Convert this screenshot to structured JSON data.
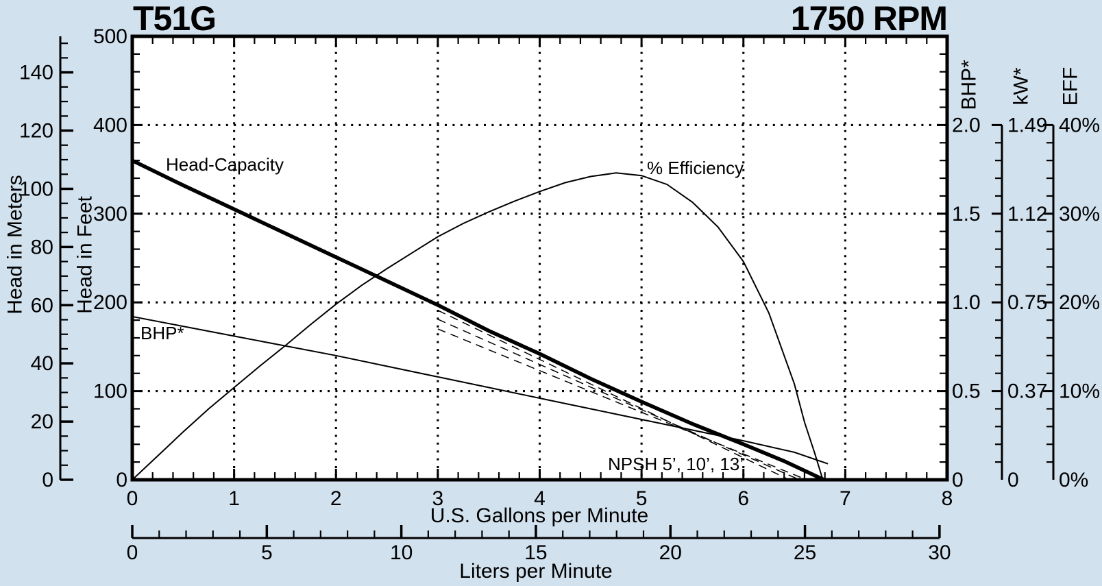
{
  "page": {
    "background": "#d2e1ee",
    "plot_background": "#ffffff",
    "ink": "#000000"
  },
  "header": {
    "model": "T51G",
    "speed": "1750 RPM"
  },
  "axes": {
    "gpm": {
      "title": "U.S. Gallons per Minute",
      "ticks": [
        "0",
        "1",
        "2",
        "3",
        "4",
        "5",
        "6",
        "7",
        "8"
      ],
      "range": [
        0,
        8
      ],
      "minor_step": 0.2
    },
    "lpm": {
      "title": "Liters per Minute",
      "ticks": [
        "0",
        "5",
        "10",
        "15",
        "20",
        "25",
        "30"
      ],
      "range": [
        0,
        30
      ],
      "minor_step": 1
    },
    "feet": {
      "title": "Head in Feet",
      "ticks": [
        "0",
        "100",
        "200",
        "300",
        "400",
        "500"
      ],
      "range": [
        0,
        500
      ],
      "minor_step": 20
    },
    "meters": {
      "title": "Head in Meters",
      "ticks": [
        "0",
        "20",
        "40",
        "60",
        "80",
        "100",
        "120",
        "140"
      ],
      "range": [
        0,
        152
      ],
      "minor_step": 5
    },
    "bhp": {
      "title": "BHP*",
      "labels": [
        "2.0",
        "1.5",
        "1.0",
        "0.5",
        "0"
      ],
      "at_feet": [
        400,
        300,
        200,
        100,
        0
      ]
    },
    "kw": {
      "title": "kW*",
      "labels": [
        "1.49",
        "1.12",
        "0.75",
        "0.37",
        "0"
      ],
      "at_feet": [
        400,
        300,
        200,
        100,
        0
      ]
    },
    "eff": {
      "title": "EFF",
      "labels": [
        "40%",
        "30%",
        "20%",
        "10%",
        "0%"
      ],
      "at_feet": [
        400,
        300,
        200,
        100,
        0
      ]
    }
  },
  "annotations": {
    "head_capacity": "Head-Capacity",
    "efficiency": "% Efficiency",
    "bhp": "BHP*",
    "npsh": "NPSH 5’, 10’, 13’"
  },
  "chart_data": {
    "type": "line",
    "title": "T51G",
    "subtitle": "1750 RPM",
    "xlabel": "U.S. Gallons per Minute",
    "xlabel2": "Liters per Minute",
    "x_range_gpm": [
      0,
      8
    ],
    "x_range_lpm": [
      0,
      30
    ],
    "y_feet_range": [
      0,
      500
    ],
    "y_meters_range": [
      0,
      152
    ],
    "y_bhp_labels": [
      2.0,
      1.5,
      1.0,
      0.5,
      0
    ],
    "y_kw_labels": [
      1.49,
      1.12,
      0.75,
      0.37,
      0
    ],
    "y_eff_labels_percent": [
      40,
      30,
      20,
      10,
      0
    ],
    "grid": "dotted, vertical at each GPM 1-7, horizontal at 100/200/300/400 ft",
    "series": [
      {
        "name": "Head-Capacity",
        "axis": "feet",
        "style": "thick",
        "points": [
          [
            0,
            360
          ],
          [
            0.5,
            332
          ],
          [
            1,
            305
          ],
          [
            1.5,
            278
          ],
          [
            2,
            251
          ],
          [
            2.5,
            224
          ],
          [
            3,
            197
          ],
          [
            3.5,
            168
          ],
          [
            4,
            142
          ],
          [
            4.5,
            114
          ],
          [
            5,
            88
          ],
          [
            5.5,
            63
          ],
          [
            6,
            40
          ],
          [
            6.4,
            21
          ],
          [
            6.79,
            0
          ]
        ]
      },
      {
        "name": "% Efficiency",
        "axis": "eff_percent",
        "style": "thin",
        "points": [
          [
            0,
            0
          ],
          [
            0.25,
            2.7
          ],
          [
            0.5,
            5.4
          ],
          [
            0.75,
            8.0
          ],
          [
            1,
            10.4
          ],
          [
            1.25,
            12.8
          ],
          [
            1.5,
            15.1
          ],
          [
            1.75,
            17.5
          ],
          [
            2,
            19.8
          ],
          [
            2.25,
            21.9
          ],
          [
            2.5,
            23.8
          ],
          [
            2.75,
            25.6
          ],
          [
            3,
            27.4
          ],
          [
            3.25,
            28.9
          ],
          [
            3.5,
            30.2
          ],
          [
            3.75,
            31.4
          ],
          [
            4,
            32.5
          ],
          [
            4.25,
            33.5
          ],
          [
            4.5,
            34.2
          ],
          [
            4.75,
            34.6
          ],
          [
            5,
            34.3
          ],
          [
            5.25,
            33.3
          ],
          [
            5.5,
            31.3
          ],
          [
            5.75,
            28.5
          ],
          [
            6,
            24.6
          ],
          [
            6.25,
            18.8
          ],
          [
            6.5,
            10.8
          ],
          [
            6.6,
            6.5
          ],
          [
            6.7,
            3.0
          ],
          [
            6.78,
            0
          ]
        ]
      },
      {
        "name": "BHP*",
        "axis": "bhp",
        "style": "thin",
        "points": [
          [
            0,
            0.92
          ],
          [
            0.5,
            0.865
          ],
          [
            1,
            0.81
          ],
          [
            1.5,
            0.755
          ],
          [
            2,
            0.7
          ],
          [
            2.5,
            0.64
          ],
          [
            3,
            0.58
          ],
          [
            3.5,
            0.52
          ],
          [
            4,
            0.46
          ],
          [
            4.5,
            0.4
          ],
          [
            5,
            0.34
          ],
          [
            5.5,
            0.28
          ],
          [
            6,
            0.22
          ],
          [
            6.5,
            0.155
          ],
          [
            6.83,
            0.09
          ]
        ]
      },
      {
        "name": "NPSH 5'",
        "axis": "feet",
        "style": "dashed",
        "points": [
          [
            3,
            191
          ],
          [
            6.45,
            0
          ]
        ]
      },
      {
        "name": "NPSH 10'",
        "axis": "feet",
        "style": "dashed",
        "points": [
          [
            3,
            181
          ],
          [
            6.55,
            0
          ]
        ]
      },
      {
        "name": "NPSH 13'",
        "axis": "feet",
        "style": "dashed",
        "points": [
          [
            3,
            170
          ],
          [
            6.62,
            0
          ]
        ]
      }
    ]
  }
}
